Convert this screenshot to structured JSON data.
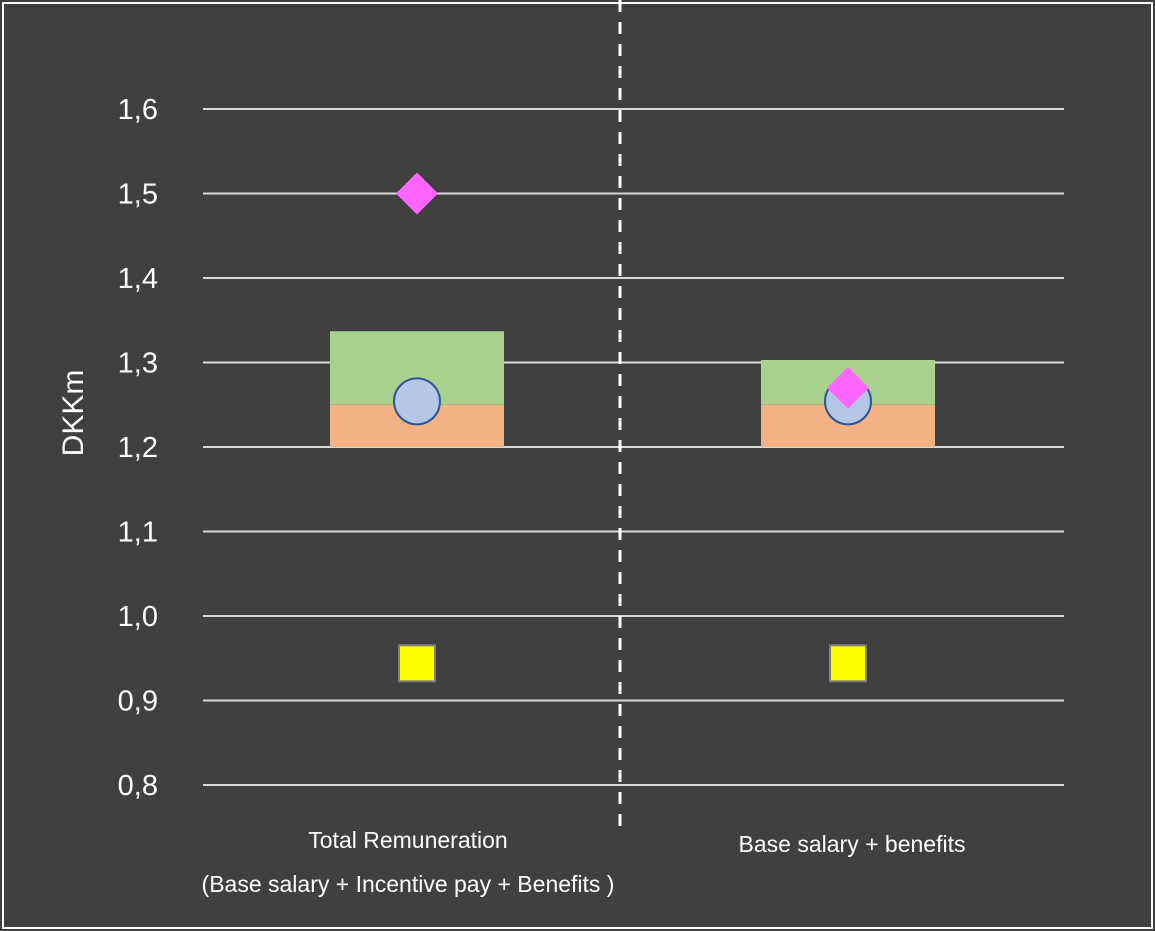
{
  "chart_data": {
    "type": "bar",
    "ylabel": "DKKm",
    "ylim": [
      0.8,
      1.6
    ],
    "y_ticks": [
      "0,8",
      "0,9",
      "1,0",
      "1,1",
      "1,2",
      "1,3",
      "1,4",
      "1,5",
      "1,6"
    ],
    "y_tick_values": [
      0.8,
      0.9,
      1.0,
      1.1,
      1.2,
      1.3,
      1.4,
      1.5,
      1.6
    ],
    "grid": true,
    "categories": [
      {
        "line1": "Total Remuneration",
        "line2": "(Base salary + Incentive pay + Benefits )"
      },
      {
        "line1": "Base salary + benefits",
        "line2": ""
      }
    ],
    "range_bars": [
      {
        "category": 0,
        "base": 1.2,
        "lower_top": 1.25,
        "upper_top": 1.337
      },
      {
        "category": 1,
        "base": 1.2,
        "lower_top": 1.25,
        "upper_top": 1.303
      }
    ],
    "markers": {
      "diamond": [
        1.5,
        1.27
      ],
      "circle": [
        1.254,
        1.254
      ],
      "square": [
        0.944,
        0.944
      ]
    },
    "colors": {
      "background": "#404040",
      "grid": "#d9d9d9",
      "lower_band": "#f4b183",
      "upper_band": "#a9d18e",
      "diamond": "#ff66ff",
      "circle_fill": "#b4c7e7",
      "circle_stroke": "#2f5597",
      "square_fill": "#ffff00",
      "square_stroke": "#7f7f7f",
      "divider": "#ffffff"
    }
  }
}
